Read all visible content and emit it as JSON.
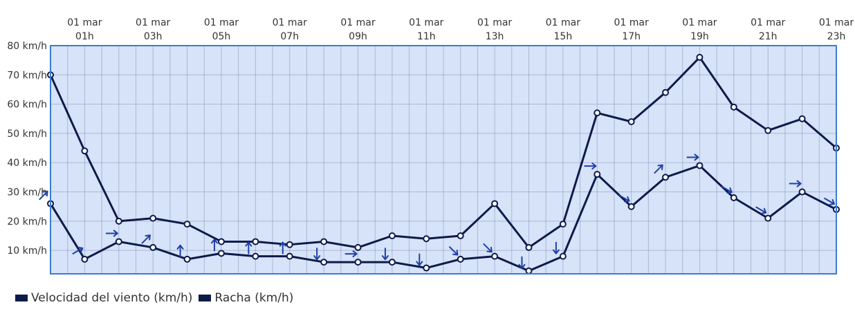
{
  "chart_data": {
    "type": "line",
    "x_labels_top": [
      "01 mar",
      "01 mar",
      "01 mar",
      "01 mar",
      "01 mar",
      "01 mar",
      "01 mar",
      "01 mar",
      "01 mar",
      "01 mar",
      "01 mar",
      "01 mar"
    ],
    "x_labels_bottom": [
      "01h",
      "03h",
      "05h",
      "07h",
      "09h",
      "11h",
      "13h",
      "15h",
      "17h",
      "19h",
      "21h",
      "23h"
    ],
    "x_tick_hours": [
      1,
      3,
      5,
      7,
      9,
      11,
      13,
      15,
      17,
      19,
      21,
      23
    ],
    "hours": [
      0,
      1,
      2,
      3,
      4,
      5,
      6,
      7,
      8,
      9,
      10,
      11,
      12,
      13,
      14,
      15,
      16,
      17,
      18,
      19,
      20,
      21,
      22,
      23
    ],
    "y_ticks": [
      "10 km/h",
      "20 km/h",
      "30 km/h",
      "40 km/h",
      "50 km/h",
      "60 km/h",
      "70 km/h",
      "80 km/h"
    ],
    "y_tick_values": [
      10,
      20,
      30,
      40,
      50,
      60,
      70,
      80
    ],
    "ylim": [
      2,
      80
    ],
    "xlim": [
      0,
      23
    ],
    "grid": true,
    "legend_position": "bottom-left",
    "series": [
      {
        "name": "Velocidad del viento (km/h)",
        "color": "#0d1a4a",
        "values": [
          26,
          7,
          13,
          11,
          7,
          9,
          8,
          8,
          6,
          6,
          6,
          4,
          7,
          8,
          3,
          8,
          36,
          25,
          35,
          39,
          28,
          21,
          30,
          24
        ],
        "wind_direction_deg": [
          45,
          60,
          90,
          45,
          0,
          0,
          0,
          0,
          180,
          90,
          180,
          180,
          135,
          135,
          180,
          180,
          90,
          120,
          45,
          90,
          120,
          120,
          90,
          120
        ]
      },
      {
        "name": "Racha (km/h)",
        "color": "#0d1a4a",
        "values": [
          70,
          44,
          20,
          21,
          19,
          13,
          13,
          12,
          13,
          11,
          15,
          14,
          15,
          26,
          11,
          19,
          57,
          54,
          64,
          76,
          59,
          51,
          55,
          45
        ]
      }
    ],
    "colors": {
      "plot_background": "#d6e3f8",
      "plot_border": "#3a7bd5",
      "grid": "#8a93b8",
      "arrow": "#1f3fa8"
    }
  }
}
